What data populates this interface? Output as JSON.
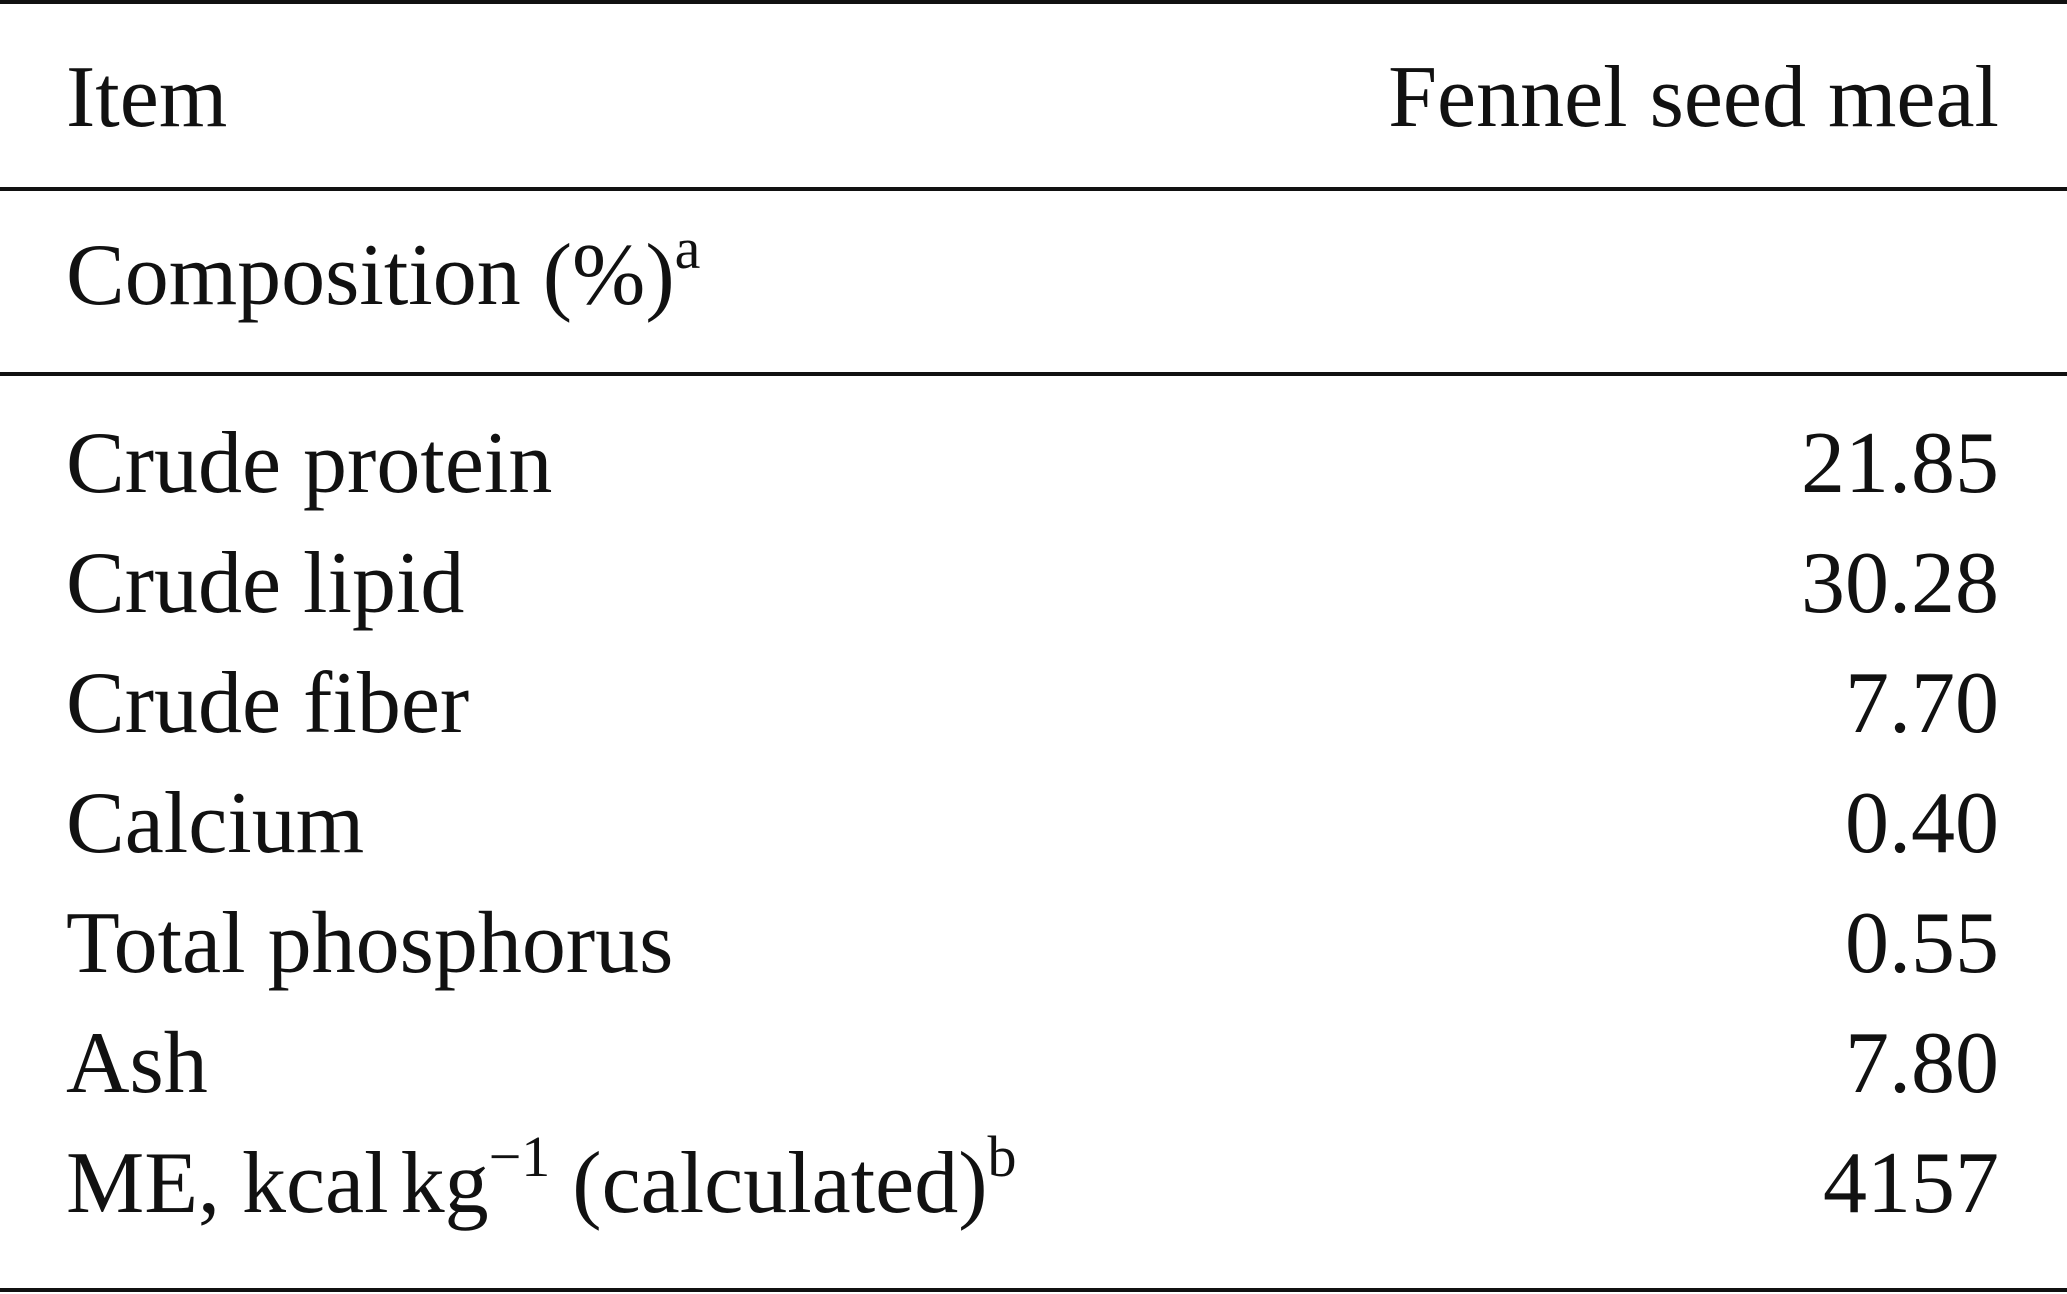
{
  "header": {
    "item_label": "Item",
    "value_label": "Fennel seed meal"
  },
  "section": {
    "label": "Composition (%)",
    "footnote": "a"
  },
  "rows": [
    {
      "name": "Crude protein",
      "value": "21.85"
    },
    {
      "name": "Crude lipid",
      "value": "30.28"
    },
    {
      "name": "Crude fiber",
      "value": "7.70"
    },
    {
      "name": "Calcium",
      "value": "0.40"
    },
    {
      "name": "Total phosphorus",
      "value": "0.55"
    },
    {
      "name": "Ash",
      "value": "7.80"
    }
  ],
  "me_row": {
    "prefix": "ME, kcal",
    "unit": "kg",
    "exponent": "−1",
    "suffix": " (calculated)",
    "footnote": "b",
    "value": "4157"
  }
}
